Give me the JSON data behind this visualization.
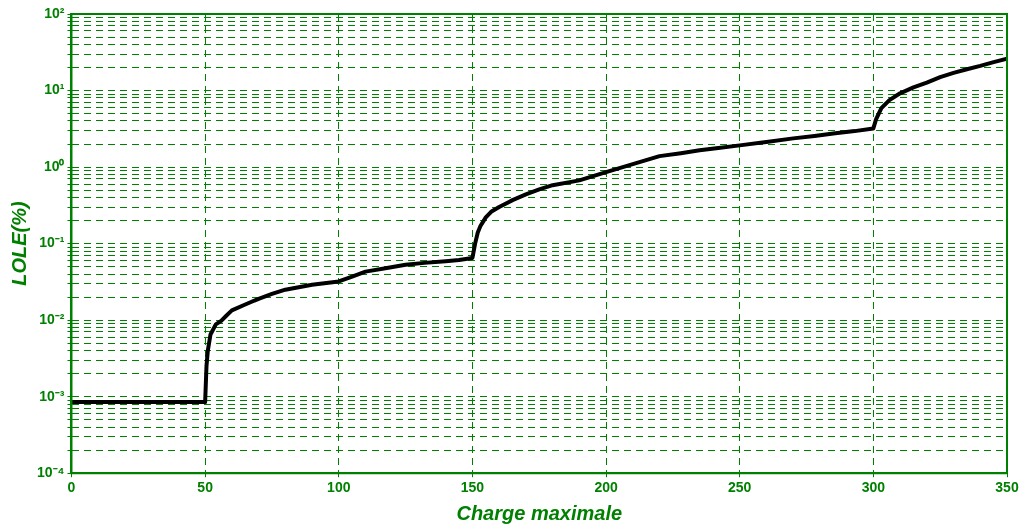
{
  "chart_data": {
    "type": "line",
    "xlabel": "Charge maximale",
    "ylabel": "LOLE(%)",
    "series": [
      {
        "color": "#000000",
        "x": [
          0,
          10,
          20,
          30,
          40,
          50,
          50.5,
          51,
          52,
          54,
          56,
          58,
          60,
          65,
          70,
          75,
          80,
          90,
          100,
          105,
          110,
          118,
          125,
          132,
          140,
          145,
          150,
          151,
          152,
          153,
          155,
          157,
          160,
          165,
          170,
          175,
          180,
          190,
          200,
          205,
          210,
          215,
          220,
          228,
          235,
          242,
          250,
          260,
          270,
          278,
          285,
          293,
          300,
          301,
          303,
          306,
          310,
          315,
          320,
          325,
          330,
          335,
          340,
          345,
          350
        ],
        "values": [
          0.00085,
          0.00085,
          0.00085,
          0.00085,
          0.00085,
          0.00085,
          0.0025,
          0.004,
          0.0065,
          0.0088,
          0.0098,
          0.0115,
          0.0134,
          0.016,
          0.019,
          0.022,
          0.025,
          0.029,
          0.032,
          0.037,
          0.043,
          0.048,
          0.053,
          0.056,
          0.059,
          0.061,
          0.065,
          0.1,
          0.14,
          0.17,
          0.22,
          0.26,
          0.3,
          0.37,
          0.44,
          0.51,
          0.58,
          0.67,
          0.86,
          0.97,
          1.09,
          1.23,
          1.39,
          1.52,
          1.66,
          1.78,
          1.92,
          2.13,
          2.37,
          2.55,
          2.75,
          2.95,
          3.2,
          4.2,
          5.9,
          7.5,
          9.2,
          11,
          12.7,
          15,
          17,
          19,
          21,
          23.5,
          26
        ]
      }
    ],
    "xlim": [
      0,
      350
    ],
    "xticks": [
      0,
      50,
      100,
      150,
      200,
      250,
      300,
      350
    ],
    "ylim": [
      0.0001,
      100
    ],
    "yticks": [
      {
        "value": 0.0001,
        "label": "10⁻⁴"
      },
      {
        "value": 0.0002,
        "label": null
      },
      {
        "value": 0.0003,
        "label": null
      },
      {
        "value": 0.0004,
        "label": null
      },
      {
        "value": 0.0005,
        "label": null
      },
      {
        "value": 0.0006,
        "label": null
      },
      {
        "value": 0.0007,
        "label": null
      },
      {
        "value": 0.0008,
        "label": null
      },
      {
        "value": 0.0009,
        "label": null
      },
      {
        "value": 0.001,
        "label": "10⁻³"
      },
      {
        "value": 0.002,
        "label": null
      },
      {
        "value": 0.003,
        "label": null
      },
      {
        "value": 0.004,
        "label": null
      },
      {
        "value": 0.005,
        "label": null
      },
      {
        "value": 0.006,
        "label": null
      },
      {
        "value": 0.007,
        "label": null
      },
      {
        "value": 0.008,
        "label": null
      },
      {
        "value": 0.009,
        "label": null
      },
      {
        "value": 0.01,
        "label": "10⁻²"
      },
      {
        "value": 0.02,
        "label": null
      },
      {
        "value": 0.03,
        "label": null
      },
      {
        "value": 0.04,
        "label": null
      },
      {
        "value": 0.05,
        "label": null
      },
      {
        "value": 0.06,
        "label": null
      },
      {
        "value": 0.07,
        "label": null
      },
      {
        "value": 0.08,
        "label": null
      },
      {
        "value": 0.09,
        "label": null
      },
      {
        "value": 0.1,
        "label": "10⁻¹"
      },
      {
        "value": 0.2,
        "label": null
      },
      {
        "value": 0.3,
        "label": null
      },
      {
        "value": 0.4,
        "label": null
      },
      {
        "value": 0.5,
        "label": null
      },
      {
        "value": 0.6,
        "label": null
      },
      {
        "value": 0.7,
        "label": null
      },
      {
        "value": 0.8,
        "label": null
      },
      {
        "value": 0.9,
        "label": null
      },
      {
        "value": 1,
        "label": "10⁰"
      },
      {
        "value": 2,
        "label": null
      },
      {
        "value": 3,
        "label": null
      },
      {
        "value": 4,
        "label": null
      },
      {
        "value": 5,
        "label": null
      },
      {
        "value": 6,
        "label": null
      },
      {
        "value": 7,
        "label": null
      },
      {
        "value": 8,
        "label": null
      },
      {
        "value": 9,
        "label": null
      },
      {
        "value": 10,
        "label": "10¹"
      },
      {
        "value": 20,
        "label": null
      },
      {
        "value": 30,
        "label": null
      },
      {
        "value": 40,
        "label": null
      },
      {
        "value": 50,
        "label": null
      },
      {
        "value": 60,
        "label": null
      },
      {
        "value": 70,
        "label": null
      },
      {
        "value": 80,
        "label": null
      },
      {
        "value": 90,
        "label": null
      },
      {
        "value": 100,
        "label": "10²"
      }
    ],
    "log": "y",
    "grid": true,
    "legend": false,
    "marker": "none",
    "line_style": "solid"
  }
}
